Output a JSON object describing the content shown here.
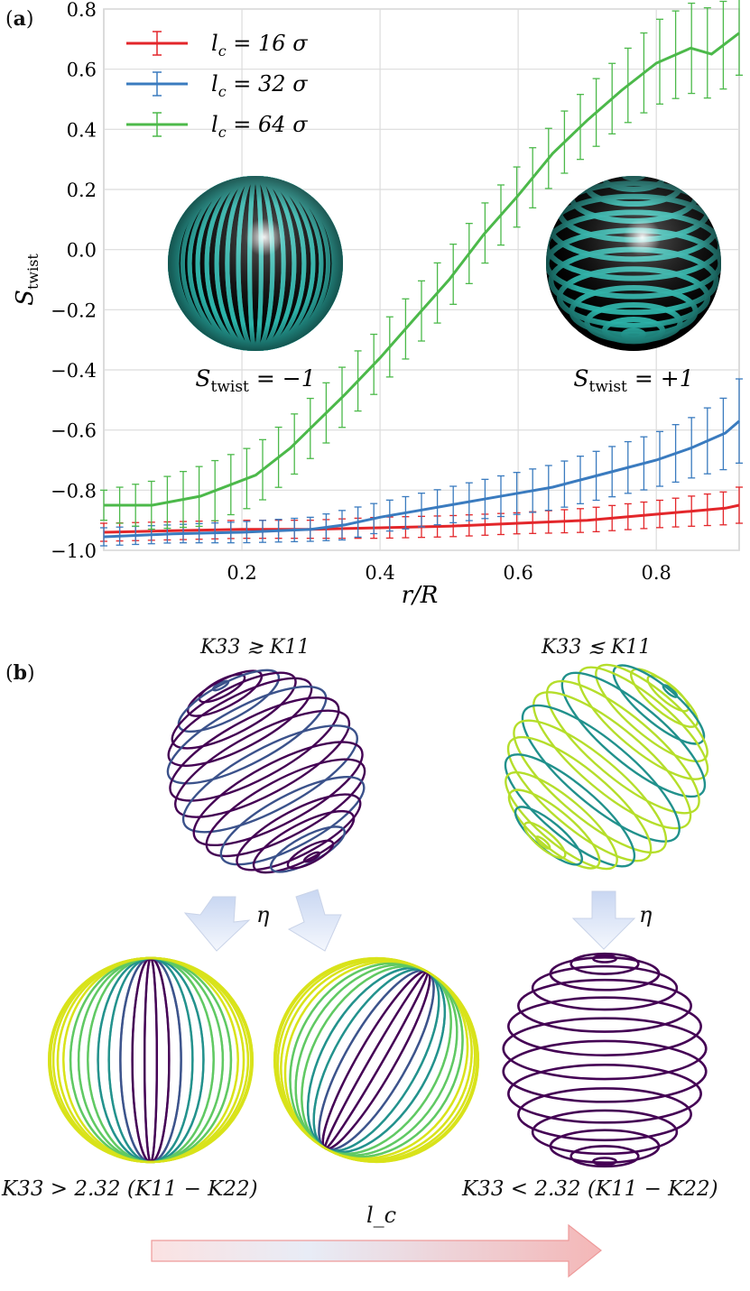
{
  "panel_a": {
    "label": "a"
  },
  "panel_b": {
    "label": "b",
    "cond_left": "K33 ≳ K11",
    "cond_right": "K33 ≲ K11",
    "eta": "η",
    "formula_left": "K33 > 2.32 (K11 − K22)",
    "formula_right": "K33 < 2.32 (K11 − K22)",
    "arrow_label": "l_c"
  },
  "insets": {
    "left_caption": "S_twist = −1",
    "right_caption": "S_twist = +1",
    "color": "#2bbbb0"
  },
  "chart_data": {
    "type": "line",
    "xlabel": "r/R",
    "ylabel": "S_twist",
    "xlim": [
      0,
      0.92
    ],
    "ylim": [
      -1.0,
      0.8
    ],
    "xticks": [
      0.2,
      0.4,
      0.6,
      0.8
    ],
    "yticks": [
      -1.0,
      -0.8,
      -0.6,
      -0.4,
      -0.2,
      0.0,
      0.2,
      0.4,
      0.6,
      0.8
    ],
    "grid": true,
    "legend_position": "top-left",
    "series": [
      {
        "name": "l_c = 16 σ",
        "color": "#e3262a",
        "x": [
          0.0,
          0.1,
          0.2,
          0.3,
          0.4,
          0.5,
          0.6,
          0.7,
          0.8,
          0.85,
          0.9,
          0.92
        ],
        "y": [
          -0.94,
          -0.935,
          -0.93,
          -0.93,
          -0.925,
          -0.92,
          -0.91,
          -0.9,
          -0.88,
          -0.87,
          -0.86,
          -0.85
        ],
        "err": [
          0.03,
          0.03,
          0.03,
          0.03,
          0.035,
          0.035,
          0.035,
          0.04,
          0.045,
          0.05,
          0.055,
          0.06
        ]
      },
      {
        "name": "l_c = 32 σ",
        "color": "#3a7bbf",
        "x": [
          0.0,
          0.1,
          0.2,
          0.3,
          0.35,
          0.4,
          0.45,
          0.5,
          0.55,
          0.6,
          0.65,
          0.7,
          0.75,
          0.8,
          0.85,
          0.9,
          0.92
        ],
        "y": [
          -0.955,
          -0.945,
          -0.94,
          -0.93,
          -0.915,
          -0.89,
          -0.87,
          -0.85,
          -0.83,
          -0.81,
          -0.79,
          -0.76,
          -0.73,
          -0.7,
          -0.66,
          -0.61,
          -0.57
        ],
        "err": [
          0.03,
          0.03,
          0.035,
          0.04,
          0.05,
          0.05,
          0.055,
          0.06,
          0.065,
          0.07,
          0.075,
          0.08,
          0.085,
          0.09,
          0.1,
          0.12,
          0.14
        ]
      },
      {
        "name": "l_c = 64 σ",
        "color": "#4cb94a",
        "x": [
          0.0,
          0.07,
          0.14,
          0.22,
          0.27,
          0.31,
          0.35,
          0.4,
          0.45,
          0.5,
          0.55,
          0.6,
          0.65,
          0.7,
          0.75,
          0.8,
          0.85,
          0.88,
          0.92
        ],
        "y": [
          -0.85,
          -0.85,
          -0.82,
          -0.75,
          -0.66,
          -0.57,
          -0.48,
          -0.36,
          -0.23,
          -0.1,
          0.05,
          0.18,
          0.32,
          0.43,
          0.53,
          0.62,
          0.67,
          0.65,
          0.72
        ],
        "err": [
          0.05,
          0.08,
          0.1,
          0.1,
          0.1,
          0.1,
          0.1,
          0.1,
          0.1,
          0.1,
          0.1,
          0.1,
          0.1,
          0.11,
          0.12,
          0.14,
          0.15,
          0.15,
          0.14
        ]
      }
    ]
  }
}
